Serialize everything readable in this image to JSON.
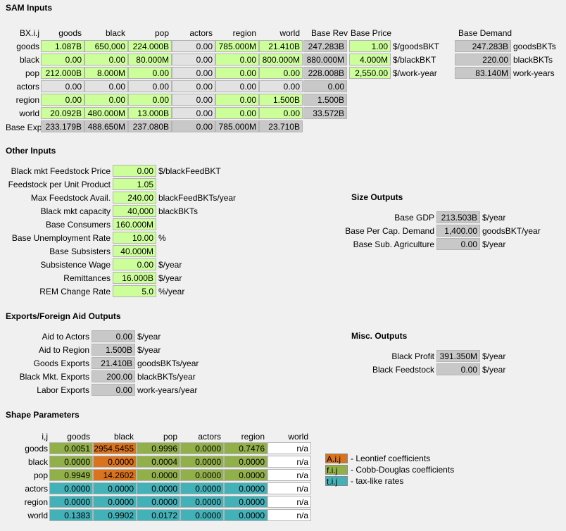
{
  "sam": {
    "title": "SAM Inputs",
    "corner": "BX.i.j",
    "cols": [
      "goods",
      "black",
      "pop",
      "actors",
      "region",
      "world"
    ],
    "rev_hdr": "Base Rev",
    "price_hdr": "Base Price",
    "demand_hdr": "Base Demand",
    "rows": [
      {
        "label": "goods",
        "cells": [
          "1.087B",
          "650,000",
          "224.000B",
          "0.00",
          "785.000M",
          "21.410B"
        ],
        "rev": "247.283B",
        "price": "1.00",
        "price_unit": "$/goodsBKT",
        "demand": "247.283B",
        "demand_unit": "goodsBKTs"
      },
      {
        "label": "black",
        "cells": [
          "0.00",
          "0.00",
          "80.000M",
          "0.00",
          "0.00",
          "800.000M"
        ],
        "rev": "880.000M",
        "price": "4.000M",
        "price_unit": "$/blackBKT",
        "demand": "220.00",
        "demand_unit": "blackBKTs"
      },
      {
        "label": "pop",
        "cells": [
          "212.000B",
          "8.000M",
          "0.00",
          "0.00",
          "0.00",
          "0.00"
        ],
        "rev": "228.008B",
        "price": "2,550.00",
        "price_unit": "$/work-year",
        "demand": "83.140M",
        "demand_unit": "work-years"
      },
      {
        "label": "actors",
        "cells": [
          "0.00",
          "0.00",
          "0.00",
          "0.00",
          "0.00",
          "0.00"
        ],
        "rev": "0.00"
      },
      {
        "label": "region",
        "cells": [
          "0.00",
          "0.00",
          "0.00",
          "0.00",
          "0.00",
          "1.500B"
        ],
        "rev": "1.500B"
      },
      {
        "label": "world",
        "cells": [
          "20.092B",
          "480.000M",
          "13.000B",
          "0.00",
          "0.00",
          "0.00"
        ],
        "rev": "33.572B"
      }
    ],
    "exp_label": "Base Exp",
    "exp": [
      "233.179B",
      "488.650M",
      "237.080B",
      "0.00",
      "785.000M",
      "23.710B"
    ]
  },
  "other": {
    "title": "Other Inputs",
    "rows": [
      {
        "label": "Black mkt Feedstock Price",
        "value": "0.00",
        "unit": "$/blackFeedBKT"
      },
      {
        "label": "Feedstock per Unit Product",
        "value": "1.05",
        "unit": ""
      },
      {
        "label": "Max Feedstock Avail.",
        "value": "240.00",
        "unit": "blackFeedBKTs/year"
      },
      {
        "label": "Black mkt capacity",
        "value": "40,000",
        "unit": "blackBKTs"
      },
      {
        "label": "Base Consumers",
        "value": "160.000M",
        "unit": ""
      },
      {
        "label": "Base Unemployment Rate",
        "value": "10.00",
        "unit": "%"
      },
      {
        "label": "Base Subsisters",
        "value": "40.000M",
        "unit": ""
      },
      {
        "label": "Subsistence Wage",
        "value": "0.00",
        "unit": "$/year"
      },
      {
        "label": "Remittances",
        "value": "16.000B",
        "unit": "$/year"
      },
      {
        "label": "REM Change Rate",
        "value": "5.0",
        "unit": "%/year"
      }
    ]
  },
  "size": {
    "title": "Size Outputs",
    "rows": [
      {
        "label": "Base GDP",
        "value": "213.503B",
        "unit": "$/year"
      },
      {
        "label": "Base Per Cap. Demand",
        "value": "1,400.00",
        "unit": "goodsBKT/year"
      },
      {
        "label": "Base Sub. Agriculture",
        "value": "0.00",
        "unit": "$/year"
      }
    ]
  },
  "exports": {
    "title": "Exports/Foreign Aid Outputs",
    "rows": [
      {
        "label": "Aid to Actors",
        "value": "0.00",
        "unit": "$/year"
      },
      {
        "label": "Aid to Region",
        "value": "1.500B",
        "unit": "$/year"
      },
      {
        "label": "Goods Exports",
        "value": "21.410B",
        "unit": "goodsBKTs/year"
      },
      {
        "label": "Black Mkt. Exports",
        "value": "200.00",
        "unit": "blackBKTs/year"
      },
      {
        "label": "Labor Exports",
        "value": "0.00",
        "unit": "work-years/year"
      }
    ]
  },
  "misc": {
    "title": "Misc. Outputs",
    "rows": [
      {
        "label": "Black Profit",
        "value": "391.350M",
        "unit": "$/year"
      },
      {
        "label": "Black Feedstock",
        "value": "0.00",
        "unit": "$/year"
      }
    ]
  },
  "shape": {
    "title": "Shape Parameters",
    "corner": "i,j",
    "cols": [
      "goods",
      "black",
      "pop",
      "actors",
      "region",
      "world"
    ],
    "rows": [
      {
        "label": "goods",
        "cells": [
          "0.0051",
          "2954.5455",
          "0.9996",
          "0.0000",
          "0.7476",
          "n/a"
        ],
        "types": [
          "olive",
          "orange",
          "olive",
          "olive",
          "olive",
          "white"
        ]
      },
      {
        "label": "black",
        "cells": [
          "0.0000",
          "0.0000",
          "0.0004",
          "0.0000",
          "0.0000",
          "n/a"
        ],
        "types": [
          "olive",
          "orange",
          "olive",
          "olive",
          "olive",
          "white"
        ]
      },
      {
        "label": "pop",
        "cells": [
          "0.9949",
          "14.2602",
          "0.0000",
          "0.0000",
          "0.0000",
          "n/a"
        ],
        "types": [
          "olive",
          "orange",
          "olive",
          "olive",
          "olive",
          "white"
        ]
      },
      {
        "label": "actors",
        "cells": [
          "0.0000",
          "0.0000",
          "0.0000",
          "0.0000",
          "0.0000",
          "n/a"
        ],
        "types": [
          "teal",
          "teal",
          "teal",
          "teal",
          "teal",
          "white"
        ]
      },
      {
        "label": "region",
        "cells": [
          "0.0000",
          "0.0000",
          "0.0000",
          "0.0000",
          "0.0000",
          "n/a"
        ],
        "types": [
          "teal",
          "teal",
          "teal",
          "teal",
          "teal",
          "white"
        ]
      },
      {
        "label": "world",
        "cells": [
          "0.1383",
          "0.9902",
          "0.0172",
          "0.0000",
          "0.0000",
          "n/a"
        ],
        "types": [
          "teal",
          "teal",
          "teal",
          "teal",
          "teal",
          "white"
        ]
      }
    ],
    "legend": [
      {
        "key": "A.i.j",
        "text": "- Leontief coefficients",
        "color": "#d9731d"
      },
      {
        "key": "f.i.j",
        "text": "- Cobb-Douglas coefficients",
        "color": "#92b04a"
      },
      {
        "key": "t.i.j",
        "text": "- tax-like rates",
        "color": "#43b1b8"
      }
    ]
  },
  "colors": {
    "input": "#ccff99",
    "output": "#c8c8c8",
    "leontief": "#d9731d",
    "cobb": "#92b04a",
    "tax": "#43b1b8"
  }
}
